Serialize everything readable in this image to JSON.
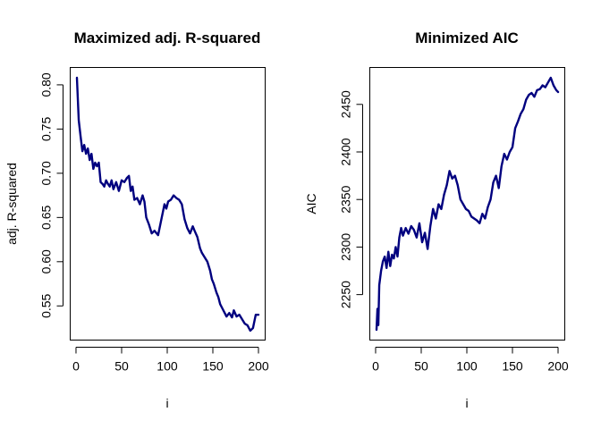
{
  "chart_data": [
    {
      "type": "line",
      "title": "Maximized adj. R-squared",
      "xlabel": "i",
      "ylabel": "adj. R-squared",
      "xlim": [
        1,
        200
      ],
      "ylim": [
        0.523,
        0.808
      ],
      "xticks": [
        0,
        50,
        100,
        150,
        200
      ],
      "yticks": [
        0.55,
        0.6,
        0.65,
        0.7,
        0.75,
        0.8
      ],
      "ytick_labels": [
        "0.55",
        "0.60",
        "0.65",
        "0.70",
        "0.75",
        "0.80"
      ],
      "grid": false,
      "color": "#00007f",
      "series": [
        {
          "x": [
            1,
            3,
            5,
            7,
            9,
            11,
            13,
            15,
            17,
            19,
            21,
            23,
            25,
            27,
            29,
            31,
            33,
            35,
            37,
            39,
            41,
            44,
            47,
            50,
            53,
            56,
            58,
            60,
            62,
            64,
            67,
            70,
            73,
            75,
            77,
            80,
            83,
            86,
            90,
            93,
            95,
            97,
            99,
            101,
            104,
            107,
            110,
            113,
            116,
            119,
            122,
            125,
            128,
            130,
            133,
            136,
            138,
            141,
            144,
            147,
            149,
            151,
            154,
            156,
            158,
            160,
            163,
            165,
            168,
            171,
            173,
            176,
            179,
            182,
            185,
            188,
            191,
            194,
            197,
            200
          ],
          "y": [
            0.808,
            0.76,
            0.742,
            0.725,
            0.732,
            0.722,
            0.728,
            0.715,
            0.722,
            0.705,
            0.712,
            0.708,
            0.712,
            0.69,
            0.688,
            0.685,
            0.692,
            0.688,
            0.685,
            0.692,
            0.682,
            0.69,
            0.68,
            0.692,
            0.69,
            0.695,
            0.697,
            0.68,
            0.685,
            0.67,
            0.672,
            0.665,
            0.675,
            0.668,
            0.65,
            0.642,
            0.632,
            0.635,
            0.63,
            0.645,
            0.655,
            0.665,
            0.66,
            0.668,
            0.67,
            0.675,
            0.672,
            0.67,
            0.665,
            0.648,
            0.638,
            0.632,
            0.64,
            0.635,
            0.628,
            0.615,
            0.61,
            0.605,
            0.6,
            0.59,
            0.58,
            0.575,
            0.565,
            0.56,
            0.552,
            0.548,
            0.542,
            0.538,
            0.542,
            0.537,
            0.545,
            0.538,
            0.54,
            0.535,
            0.53,
            0.528,
            0.522,
            0.525,
            0.54,
            0.54
          ]
        }
      ]
    },
    {
      "type": "line",
      "title": "Minimized AIC",
      "xlabel": "i",
      "ylabel": "AIC",
      "xlim": [
        1,
        200
      ],
      "ylim": [
        2213,
        2478
      ],
      "xticks": [
        0,
        50,
        100,
        150,
        200
      ],
      "yticks": [
        2250,
        2300,
        2350,
        2400,
        2450
      ],
      "ytick_labels": [
        "2250",
        "2300",
        "2350",
        "2400",
        "2450"
      ],
      "grid": false,
      "color": "#00007f",
      "series": [
        {
          "x": [
            1,
            2,
            3,
            4,
            6,
            8,
            10,
            12,
            14,
            16,
            18,
            20,
            22,
            24,
            26,
            28,
            30,
            33,
            36,
            39,
            42,
            45,
            48,
            51,
            54,
            57,
            60,
            63,
            66,
            69,
            72,
            75,
            78,
            81,
            84,
            87,
            90,
            93,
            96,
            99,
            102,
            105,
            108,
            111,
            114,
            117,
            120,
            123,
            126,
            129,
            132,
            135,
            138,
            141,
            144,
            147,
            150,
            153,
            156,
            159,
            162,
            165,
            168,
            171,
            174,
            177,
            180,
            183,
            186,
            189,
            192,
            195,
            198,
            200
          ],
          "y": [
            2213,
            2235,
            2218,
            2260,
            2275,
            2285,
            2290,
            2278,
            2295,
            2280,
            2292,
            2288,
            2300,
            2290,
            2310,
            2320,
            2312,
            2320,
            2314,
            2322,
            2318,
            2310,
            2325,
            2305,
            2315,
            2298,
            2322,
            2340,
            2330,
            2345,
            2340,
            2355,
            2365,
            2380,
            2372,
            2375,
            2365,
            2350,
            2345,
            2340,
            2338,
            2332,
            2330,
            2328,
            2325,
            2335,
            2330,
            2342,
            2350,
            2368,
            2375,
            2362,
            2385,
            2398,
            2392,
            2400,
            2405,
            2425,
            2432,
            2440,
            2445,
            2455,
            2460,
            2462,
            2458,
            2465,
            2466,
            2470,
            2468,
            2473,
            2478,
            2470,
            2465,
            2463
          ]
        }
      ]
    }
  ]
}
